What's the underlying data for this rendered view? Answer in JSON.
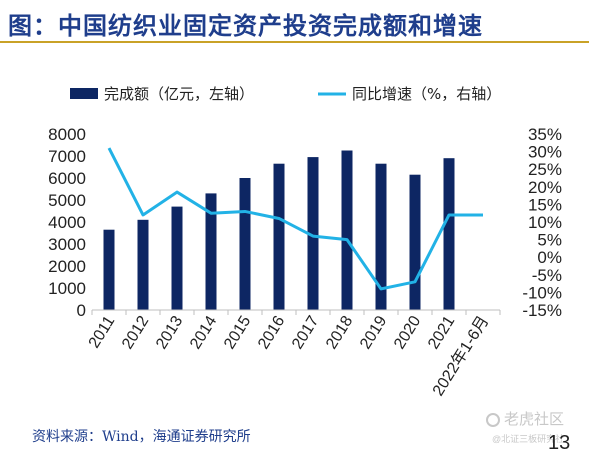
{
  "title": "图：中国纺织业固定资产投资完成额和增速",
  "source": "资料来源：Wind，海通证券研究所",
  "watermark": "老虎社区",
  "watermark_sub": "@北证三板研究社",
  "page_number": "13",
  "colors": {
    "bar": "#0d2663",
    "line": "#22b2e6",
    "title": "#1f3e8c",
    "rule": "#c9a227"
  },
  "chart_data": {
    "type": "bar",
    "categories": [
      "2011",
      "2012",
      "2013",
      "2014",
      "2015",
      "2016",
      "2017",
      "2018",
      "2019",
      "2020",
      "2021",
      "2022年1-6月"
    ],
    "series": [
      {
        "name": "完成额（亿元，左轴）",
        "type": "bar",
        "axis": "left",
        "values": [
          3650,
          4100,
          4700,
          5300,
          6000,
          6650,
          6950,
          7250,
          6650,
          6150,
          6900,
          null
        ]
      },
      {
        "name": "同比增速（%，右轴）",
        "type": "line",
        "axis": "right",
        "values": [
          31,
          12,
          18.5,
          12.5,
          13,
          11,
          6,
          5,
          -9,
          -7,
          12,
          12
        ]
      }
    ],
    "ylim": [
      0,
      8000
    ],
    "yticks": [
      0,
      1000,
      2000,
      3000,
      4000,
      5000,
      6000,
      7000,
      8000
    ],
    "y2lim": [
      -15,
      35
    ],
    "y2ticks": [
      -15,
      -10,
      -5,
      0,
      5,
      10,
      15,
      20,
      25,
      30,
      35
    ],
    "y2_tick_suffix": "%",
    "legend_position": "top",
    "grid": false
  }
}
